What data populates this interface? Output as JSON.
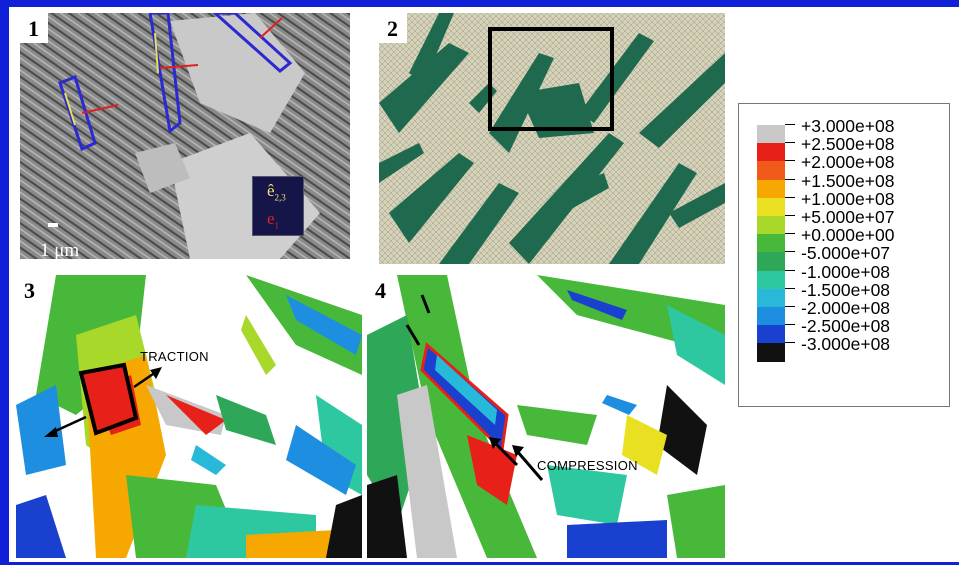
{
  "panels": {
    "p1": {
      "label": "1",
      "scale": "1 μm",
      "axis_top": "ê",
      "axis_top_sub": "2,3",
      "axis_bottom": "e",
      "axis_bottom_sub": "1"
    },
    "p2": {
      "label": "2"
    },
    "p3": {
      "label": "3",
      "annotation": "TRACTION"
    },
    "p4": {
      "label": "4",
      "annotation": "COMPRESSION"
    }
  },
  "legend": {
    "entries": [
      {
        "label": "+3.000e+08",
        "color": "#c8c8c8"
      },
      {
        "label": "+2.500e+08",
        "color": "#e8201a"
      },
      {
        "label": "+2.000e+08",
        "color": "#f05a1a"
      },
      {
        "label": "+1.500e+08",
        "color": "#f7a800"
      },
      {
        "label": "+1.000e+08",
        "color": "#e8e020"
      },
      {
        "label": "+5.000e+07",
        "color": "#a8d82a"
      },
      {
        "label": "+0.000e+00",
        "color": "#48b83a"
      },
      {
        "label": "-5.000e+07",
        "color": "#2ea858"
      },
      {
        "label": "-1.000e+08",
        "color": "#2ec8a0"
      },
      {
        "label": "-1.500e+08",
        "color": "#28b8d8"
      },
      {
        "label": "-2.000e+08",
        "color": "#1e8ee0"
      },
      {
        "label": "-2.500e+08",
        "color": "#1a40d0"
      },
      {
        "label": "-3.000e+08",
        "color": "#111111"
      }
    ]
  }
}
